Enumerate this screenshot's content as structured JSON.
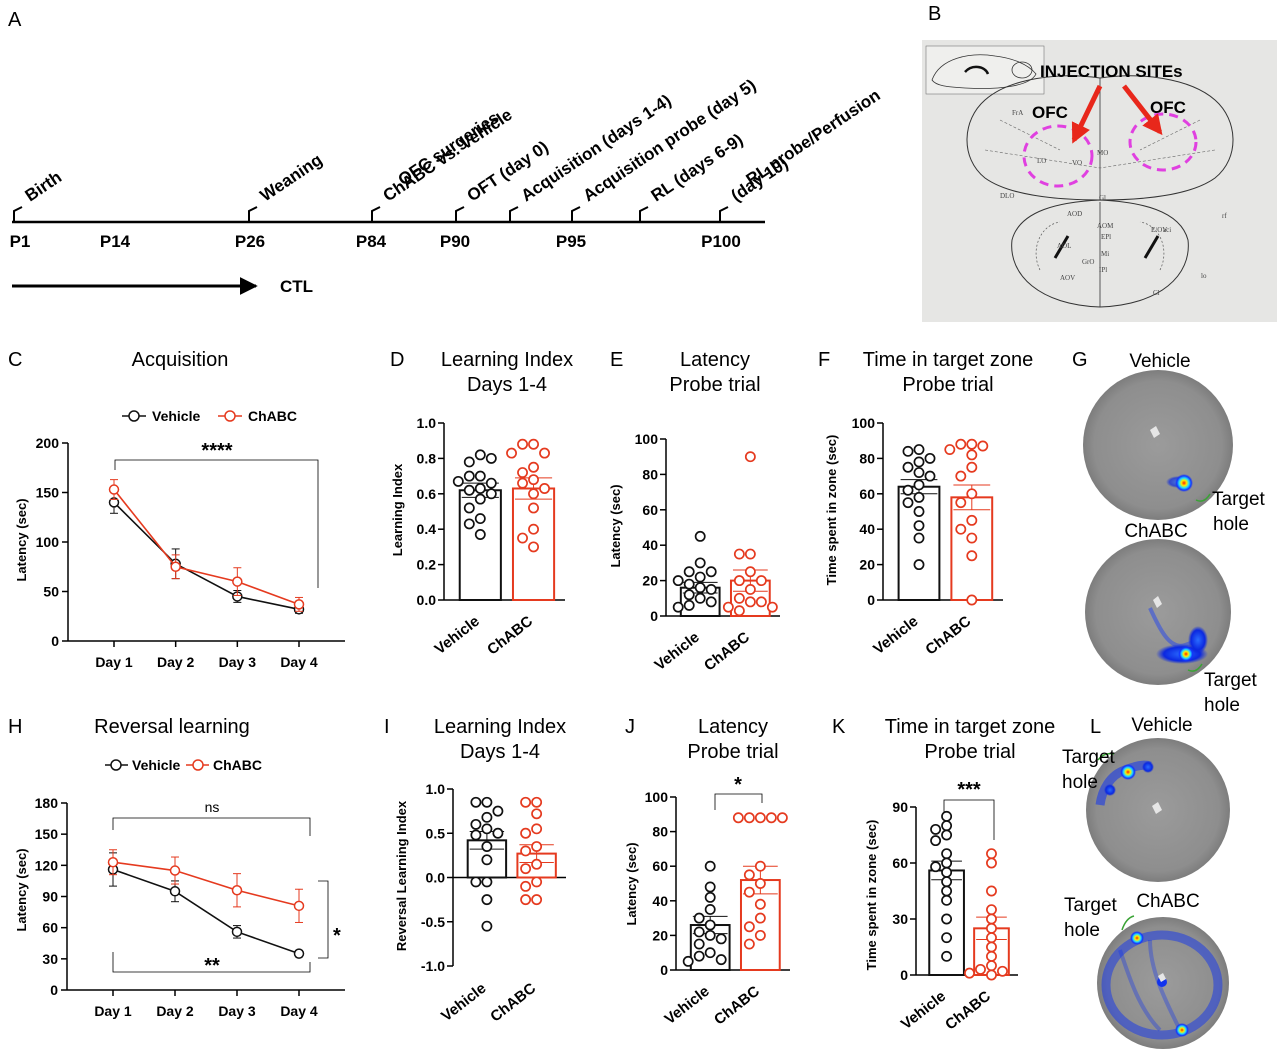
{
  "colors": {
    "vehicle": "#111111",
    "chabc": "#e53a1f",
    "arrow": "#e8271b",
    "ofc": "#e040e0"
  },
  "panelA": {
    "label": "A",
    "timeline": [
      {
        "tick": "P1",
        "event": "Birth"
      },
      {
        "tick": "P14",
        "event": ""
      },
      {
        "tick": "P26",
        "event": "Weaning"
      },
      {
        "tick": "P84",
        "event": "OFC surgeries\nChABC vs. Vehicle"
      },
      {
        "tick": "P90",
        "event": "OFT (day 0)"
      },
      {
        "tick": "",
        "event": "Acquisition (days 1-4)"
      },
      {
        "tick": "P95",
        "event": "Acquisition probe (day 5)"
      },
      {
        "tick": "",
        "event": "RL (days 6-9)"
      },
      {
        "tick": "P100",
        "event": "RL probe/Perfusion\n(day 10)"
      }
    ],
    "ctl": "CTL"
  },
  "panelB": {
    "label": "B",
    "injection": "INJECTION SITEs",
    "ofc_left": "OFC",
    "ofc_right": "OFC",
    "atlas_labels": [
      "FrA",
      "LO",
      "VO",
      "MO",
      "DLO",
      "AOD",
      "AOM",
      "AOL",
      "AOV",
      "GrO",
      "EPl",
      "Mi",
      "IPl",
      "E/OV",
      "aci",
      "Gl",
      "rf",
      "lo",
      "Cl"
    ]
  },
  "panelC": {
    "label": "C",
    "title": "Acquisition",
    "ylabel": "Latency (sec)",
    "yticks": [
      "0",
      "50",
      "100",
      "150",
      "200"
    ],
    "sig": "****",
    "legend": [
      "Vehicle",
      "ChABC"
    ]
  },
  "panelD": {
    "label": "D",
    "title1": "Learning Index",
    "title2": "Days 1-4",
    "ylabel": "Learning Index",
    "yticks": [
      "0.0",
      "0.2",
      "0.4",
      "0.6",
      "0.8",
      "1.0"
    ],
    "xcats": [
      "Vehicle",
      "ChABC"
    ]
  },
  "panelE": {
    "label": "E",
    "title1": "Latency",
    "title2": "Probe trial",
    "ylabel": "Latency (sec)",
    "yticks": [
      "0",
      "20",
      "40",
      "60",
      "80",
      "100"
    ],
    "xcats": [
      "Vehicle",
      "ChABC"
    ]
  },
  "panelF": {
    "label": "F",
    "title1": "Time in target zone",
    "title2": "Probe trial",
    "ylabel": "Time spent in zone  (sec)",
    "yticks": [
      "0",
      "20",
      "40",
      "60",
      "80",
      "100"
    ],
    "xcats": [
      "Vehicle",
      "ChABC"
    ]
  },
  "panelG": {
    "label": "G",
    "top": "Vehicle",
    "bottom": "ChABC",
    "target1": "Target",
    "target2": "hole"
  },
  "panelH": {
    "label": "H",
    "title": "Reversal learning",
    "ylabel": "Latency (sec)",
    "yticks": [
      "0",
      "30",
      "60",
      "90",
      "120",
      "150",
      "180"
    ],
    "sig_ns": "ns",
    "sig_bottom": "**",
    "sig_side": "*",
    "legend": [
      "Vehicle",
      "ChABC"
    ]
  },
  "panelI": {
    "label": "I",
    "title1": "Learning Index",
    "title2": "Days 1-4",
    "ylabel": "Reversal Learning Index",
    "yticks": [
      "-1.0",
      "-0.5",
      "0.0",
      "0.5",
      "1.0"
    ],
    "xcats": [
      "Vehicle",
      "ChABC"
    ]
  },
  "panelJ": {
    "label": "J",
    "title1": "Latency",
    "title2": "Probe trial",
    "ylabel": "Latency (sec)",
    "yticks": [
      "0",
      "20",
      "40",
      "60",
      "80",
      "100"
    ],
    "xcats": [
      "Vehicle",
      "ChABC"
    ],
    "sig": "*"
  },
  "panelK": {
    "label": "K",
    "title1": "Time in target zone",
    "title2": "Probe trial",
    "ylabel": "Time spent in zone  (sec)",
    "yticks": [
      "0",
      "30",
      "60",
      "90"
    ],
    "xcats": [
      "Vehicle",
      "ChABC"
    ],
    "sig": "***"
  },
  "panelL": {
    "label": "L",
    "top": "Vehicle",
    "bottom": "ChABC",
    "target1": "Target",
    "target2": "hole"
  },
  "chart_data": [
    {
      "id": "C",
      "type": "line",
      "title": "Acquisition",
      "xlabel": "",
      "ylabel": "Latency (sec)",
      "ylim": [
        0,
        200
      ],
      "categories": [
        "Day 1",
        "Day 2",
        "Day 3",
        "Day 4"
      ],
      "series": [
        {
          "name": "Vehicle",
          "values": [
            140,
            78,
            45,
            32
          ],
          "err": [
            11,
            15,
            6,
            4
          ]
        },
        {
          "name": "ChABC",
          "values": [
            153,
            75,
            60,
            37
          ],
          "err": [
            10,
            12,
            14,
            7
          ]
        }
      ]
    },
    {
      "id": "D",
      "type": "bar",
      "title": "Learning Index Days 1-4",
      "ylabel": "Learning Index",
      "ylim": [
        0,
        1
      ],
      "categories": [
        "Vehicle",
        "ChABC"
      ],
      "values": [
        0.62,
        0.63
      ],
      "err": [
        0.04,
        0.06
      ],
      "points": [
        [
          0.82,
          0.78,
          0.8,
          0.7,
          0.7,
          0.66,
          0.63,
          0.62,
          0.6,
          0.57,
          0.52,
          0.46,
          0.43,
          0.37,
          0.67
        ],
        [
          0.88,
          0.88,
          0.83,
          0.83,
          0.75,
          0.72,
          0.68,
          0.66,
          0.63,
          0.6,
          0.52,
          0.4,
          0.35,
          0.3
        ]
      ]
    },
    {
      "id": "E",
      "type": "bar",
      "title": "Latency Probe trial",
      "ylabel": "Latency (sec)",
      "ylim": [
        0,
        100
      ],
      "categories": [
        "Vehicle",
        "ChABC"
      ],
      "values": [
        16,
        20
      ],
      "err": [
        3,
        6
      ],
      "points": [
        [
          45,
          30,
          25,
          25,
          22,
          20,
          18,
          16,
          15,
          12,
          10,
          8,
          6,
          5
        ],
        [
          90,
          35,
          35,
          25,
          20,
          20,
          15,
          10,
          8,
          8,
          5,
          5,
          3
        ]
      ]
    },
    {
      "id": "F",
      "type": "bar",
      "title": "Time in target zone Probe trial",
      "ylabel": "Time spent in zone  (sec)",
      "ylim": [
        0,
        100
      ],
      "categories": [
        "Vehicle",
        "ChABC"
      ],
      "values": [
        64,
        58
      ],
      "err": [
        4,
        7
      ],
      "points": [
        [
          85,
          84,
          80,
          78,
          75,
          72,
          70,
          65,
          62,
          58,
          55,
          50,
          42,
          35,
          20
        ],
        [
          88,
          88,
          87,
          85,
          82,
          75,
          70,
          60,
          55,
          45,
          40,
          35,
          25,
          0
        ]
      ]
    },
    {
      "id": "H",
      "type": "line",
      "title": "Reversal learning",
      "xlabel": "",
      "ylabel": "Latency (sec)",
      "ylim": [
        0,
        180
      ],
      "categories": [
        "Day 1",
        "Day 2",
        "Day 3",
        "Day 4"
      ],
      "series": [
        {
          "name": "Vehicle",
          "values": [
            116,
            95,
            56,
            35
          ],
          "err": [
            16,
            10,
            6,
            3
          ]
        },
        {
          "name": "ChABC",
          "values": [
            123,
            115,
            96,
            81
          ],
          "err": [
            12,
            13,
            16,
            16
          ]
        }
      ]
    },
    {
      "id": "I",
      "type": "bar",
      "title": "Learning Index Days 1-4",
      "ylabel": "Reversal Learning Index",
      "ylim": [
        -1,
        1
      ],
      "categories": [
        "Vehicle",
        "ChABC"
      ],
      "values": [
        0.42,
        0.27
      ],
      "err": [
        0.1,
        0.1
      ],
      "points": [
        [
          0.85,
          0.85,
          0.75,
          0.68,
          0.6,
          0.55,
          0.5,
          0.48,
          0.35,
          0.2,
          -0.05,
          -0.05,
          -0.25,
          -0.55
        ],
        [
          0.85,
          0.85,
          0.72,
          0.55,
          0.5,
          0.35,
          0.3,
          0.15,
          0.1,
          -0.05,
          -0.1,
          -0.25,
          -0.25
        ]
      ]
    },
    {
      "id": "J",
      "type": "bar",
      "title": "Latency Probe trial",
      "ylabel": "Latency (sec)",
      "ylim": [
        0,
        100
      ],
      "categories": [
        "Vehicle",
        "ChABC"
      ],
      "values": [
        26,
        52
      ],
      "err": [
        5,
        8
      ],
      "points": [
        [
          60,
          48,
          42,
          35,
          30,
          26,
          22,
          20,
          18,
          15,
          10,
          8,
          6,
          5
        ],
        [
          88,
          88,
          88,
          88,
          88,
          60,
          55,
          50,
          45,
          38,
          30,
          25,
          20,
          15
        ]
      ]
    },
    {
      "id": "K",
      "type": "bar",
      "title": "Time in target zone Probe trial",
      "ylabel": "Time spent in zone  (sec)",
      "ylim": [
        0,
        90
      ],
      "categories": [
        "Vehicle",
        "ChABC"
      ],
      "values": [
        56,
        25
      ],
      "err": [
        5,
        6
      ],
      "points": [
        [
          85,
          80,
          78,
          75,
          72,
          65,
          60,
          58,
          55,
          50,
          45,
          40,
          30,
          20,
          10
        ],
        [
          65,
          60,
          45,
          35,
          30,
          25,
          20,
          15,
          10,
          5,
          3,
          2,
          1,
          0
        ]
      ]
    }
  ]
}
